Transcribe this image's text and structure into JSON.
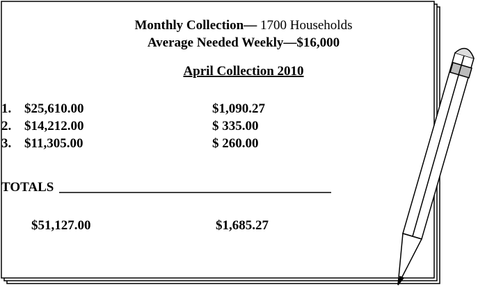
{
  "header": {
    "title_bold": "Monthly Collection—",
    "title_rest": " 1700 Households",
    "subtitle": "Average Needed Weekly—$16,000"
  },
  "section": "April Collection 2010",
  "rows": [
    [
      "1.",
      "$25,610.00",
      "$1,090.27"
    ],
    [
      "2.",
      "$14,212.00",
      "$ 335.00"
    ],
    [
      "3.",
      "$11,305.00",
      "$ 260.00"
    ]
  ],
  "totals": {
    "label": "TOTALS",
    "values": [
      "$51,127.00",
      "$1,685.27"
    ]
  }
}
